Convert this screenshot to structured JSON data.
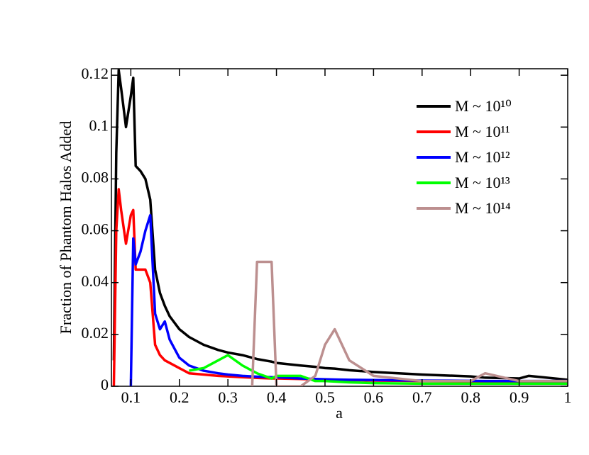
{
  "chart_data": {
    "type": "line",
    "x_label": "a",
    "y_label": "Fraction of Phantom Halos Added",
    "x": [
      0.065,
      0.07,
      0.075,
      0.08,
      0.09,
      0.1,
      0.105,
      0.11,
      0.12,
      0.13,
      0.14,
      0.15,
      0.16,
      0.17,
      0.18,
      0.2,
      0.22,
      0.25,
      0.28,
      0.3,
      0.33,
      0.35,
      0.36,
      0.39,
      0.4,
      0.45,
      0.48,
      0.5,
      0.52,
      0.55,
      0.6,
      0.7,
      0.8,
      0.83,
      0.9,
      0.92,
      1.0
    ],
    "series": [
      {
        "name": "M ~ 10¹⁰",
        "color": "#000000",
        "values": [
          0.01,
          0.09,
          0.122,
          0.115,
          0.1,
          0.112,
          0.119,
          0.085,
          0.083,
          0.08,
          0.072,
          0.045,
          0.036,
          0.031,
          0.027,
          0.022,
          0.019,
          0.016,
          0.014,
          0.013,
          0.012,
          0.011,
          0.0105,
          0.0095,
          0.009,
          0.008,
          0.0075,
          0.007,
          0.0068,
          0.0062,
          0.0055,
          0.0045,
          0.0038,
          0.0033,
          0.003,
          0.004,
          0.0025
        ]
      },
      {
        "name": "M ~ 10¹¹",
        "color": "#ff0000",
        "values": [
          0,
          0.06,
          0.076,
          0.068,
          0.055,
          0.066,
          0.068,
          0.045,
          0.045,
          0.045,
          0.04,
          0.016,
          0.012,
          0.01,
          0.009,
          0.007,
          0.005,
          0.0045,
          0.004,
          0.0038,
          0.0035,
          0.0033,
          0.0032,
          0.003,
          0.003,
          0.0028,
          0.0026,
          0.0025,
          0.0025,
          0.0024,
          0.0022,
          0.002,
          0.0018,
          0.0018,
          0.0017,
          0.0017,
          0.0015
        ]
      },
      {
        "name": "M ~ 10¹²",
        "color": "#0000ff",
        "values": [
          null,
          null,
          null,
          null,
          null,
          0,
          0.057,
          0.047,
          0.052,
          0.06,
          0.066,
          0.028,
          0.022,
          0.025,
          0.018,
          0.011,
          0.008,
          0.006,
          0.005,
          0.0045,
          0.004,
          0.0038,
          0.0037,
          0.0035,
          0.0035,
          0.003,
          0.0028,
          0.0027,
          0.0026,
          0.0025,
          0.0024,
          0.0022,
          0.0021,
          0.002,
          0.002,
          0.002,
          0.002
        ]
      },
      {
        "name": "M ~ 10¹³",
        "color": "#00ff00",
        "values": [
          null,
          null,
          null,
          null,
          null,
          null,
          null,
          null,
          null,
          null,
          null,
          null,
          null,
          null,
          null,
          null,
          0.006,
          0.007,
          0.01,
          0.012,
          0.008,
          0.006,
          0.005,
          0.003,
          0.004,
          0.004,
          0.002,
          0.002,
          0.0018,
          0.0015,
          0.0012,
          0.001,
          0.001,
          0.001,
          0.001,
          0.001,
          0.001
        ]
      },
      {
        "name": "M ~ 10¹⁴",
        "color": "#bc8f8f",
        "values": [
          null,
          null,
          null,
          null,
          null,
          null,
          null,
          null,
          null,
          null,
          null,
          null,
          null,
          null,
          null,
          null,
          null,
          null,
          null,
          null,
          null,
          0,
          0.048,
          0.048,
          0,
          0,
          0.004,
          0.016,
          0.022,
          0.01,
          0.004,
          0.002,
          0.002,
          0.005,
          0.002,
          0.002,
          0.002
        ]
      }
    ],
    "xlim": [
      0.06,
      1.0
    ],
    "xticks": [
      0.1,
      0.2,
      0.3,
      0.4,
      0.5,
      0.6,
      0.7,
      0.8,
      0.9,
      1
    ],
    "ylim": [
      0,
      0.1225
    ],
    "yticks": [
      0,
      0.02,
      0.04,
      0.06,
      0.08,
      0.1,
      0.12
    ],
    "grid": false,
    "legend": "top-right"
  }
}
